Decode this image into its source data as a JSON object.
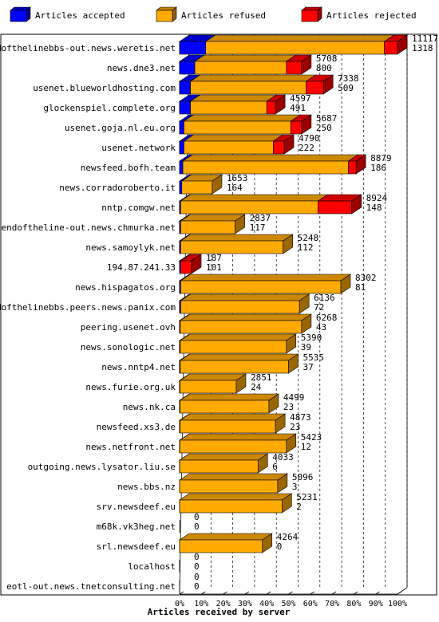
{
  "chart_data": {
    "type": "bar",
    "orientation": "horizontal",
    "stacked": true,
    "xlabel": "Articles received by server",
    "xlim": [
      0,
      100
    ],
    "x_ticks": [
      "0%",
      "10%",
      "20%",
      "30%",
      "40%",
      "50%",
      "60%",
      "70%",
      "80%",
      "90%",
      "100%"
    ],
    "legend_position": "top",
    "grid": true,
    "series": [
      {
        "name": "Articles accepted",
        "color": "#0000ff"
      },
      {
        "name": "Articles refused",
        "color": "#ffaa00"
      },
      {
        "name": "Articles rejected",
        "color": "#ff0000"
      }
    ],
    "rows": [
      {
        "server": "endofthelinebbs-out.news.weretis.net",
        "label1": "11117",
        "label2": "1318",
        "accepted": 12,
        "refused": 82,
        "rejected": 6
      },
      {
        "server": "news.dne3.net",
        "label1": "5708",
        "label2": "800",
        "accepted": 7,
        "refused": 42,
        "rejected": 7
      },
      {
        "server": "usenet.blueworldhosting.com",
        "label1": "7338",
        "label2": "509",
        "accepted": 5,
        "refused": 53,
        "rejected": 8
      },
      {
        "server": "glockenspiel.complete.org",
        "label1": "4597",
        "label2": "491",
        "accepted": 5,
        "refused": 35,
        "rejected": 4
      },
      {
        "server": "usenet.goja.nl.eu.org",
        "label1": "5687",
        "label2": "250",
        "accepted": 2,
        "refused": 49,
        "rejected": 5
      },
      {
        "server": "usenet.network",
        "label1": "4790",
        "label2": "222",
        "accepted": 2,
        "refused": 41,
        "rejected": 5
      },
      {
        "server": "newsfeed.bofh.team",
        "label1": "8879",
        "label2": "186",
        "accepted": 1.5,
        "refused": 76,
        "rejected": 3.5
      },
      {
        "server": "news.corradoroberto.it",
        "label1": "1653",
        "label2": "164",
        "accepted": 1,
        "refused": 14,
        "rejected": 0
      },
      {
        "server": "nntp.comgw.net",
        "label1": "8924",
        "label2": "148",
        "accepted": 0.5,
        "refused": 63,
        "rejected": 15.5
      },
      {
        "server": "endoftheline-out.news.chmurka.net",
        "label1": "2837",
        "label2": "117",
        "accepted": 0.5,
        "refused": 25,
        "rejected": 0
      },
      {
        "server": "news.samoylyk.net",
        "label1": "5248",
        "label2": "112",
        "accepted": 0.5,
        "refused": 47,
        "rejected": 0
      },
      {
        "server": "194.87.241.33",
        "label1": "187",
        "label2": "101",
        "accepted": 0.5,
        "refused": 0,
        "rejected": 5
      },
      {
        "server": "news.hispagatos.org",
        "label1": "8302",
        "label2": "81",
        "accepted": 0.5,
        "refused": 73.5,
        "rejected": 0
      },
      {
        "server": "endofthelinebbs.peers.news.panix.com",
        "label1": "6136",
        "label2": "72",
        "accepted": 0.5,
        "refused": 54.5,
        "rejected": 0
      },
      {
        "server": "peering.usenet.ovh",
        "label1": "6268",
        "label2": "43",
        "accepted": 0.3,
        "refused": 55.7,
        "rejected": 0
      },
      {
        "server": "news.sonologic.net",
        "label1": "5390",
        "label2": "39",
        "accepted": 0.3,
        "refused": 48.7,
        "rejected": 0
      },
      {
        "server": "news.nntp4.net",
        "label1": "5535",
        "label2": "37",
        "accepted": 0.3,
        "refused": 49.7,
        "rejected": 0
      },
      {
        "server": "news.furie.org.uk",
        "label1": "2851",
        "label2": "24",
        "accepted": 0.2,
        "refused": 25.8,
        "rejected": 0
      },
      {
        "server": "news.nk.ca",
        "label1": "4499",
        "label2": "23",
        "accepted": 0.2,
        "refused": 40.8,
        "rejected": 0
      },
      {
        "server": "newsfeed.xs3.de",
        "label1": "4873",
        "label2": "23",
        "accepted": 0.2,
        "refused": 43.8,
        "rejected": 0
      },
      {
        "server": "news.netfront.net",
        "label1": "5423",
        "label2": "12",
        "accepted": 0.1,
        "refused": 48.9,
        "rejected": 0
      },
      {
        "server": "outgoing.news.lysator.liu.se",
        "label1": "4033",
        "label2": "6",
        "accepted": 0.05,
        "refused": 35.95,
        "rejected": 0
      },
      {
        "server": "news.bbs.nz",
        "label1": "5096",
        "label2": "3",
        "accepted": 0,
        "refused": 45,
        "rejected": 0
      },
      {
        "server": "srv.newsdeef.eu",
        "label1": "5231",
        "label2": "2",
        "accepted": 0,
        "refused": 47,
        "rejected": 0
      },
      {
        "server": "m68k.vk3heg.net",
        "label1": "0",
        "label2": "0",
        "accepted": 0,
        "refused": 0,
        "rejected": 0
      },
      {
        "server": "srl.newsdeef.eu",
        "label1": "4264",
        "label2": "0",
        "accepted": 0,
        "refused": 38,
        "rejected": 0
      },
      {
        "server": "localhost",
        "label1": "0",
        "label2": "0",
        "accepted": 0,
        "refused": 0,
        "rejected": 0
      },
      {
        "server": "eotl-out.news.tnetconsulting.net",
        "label1": "0",
        "label2": "0",
        "accepted": 0,
        "refused": 0,
        "rejected": 0
      }
    ]
  }
}
